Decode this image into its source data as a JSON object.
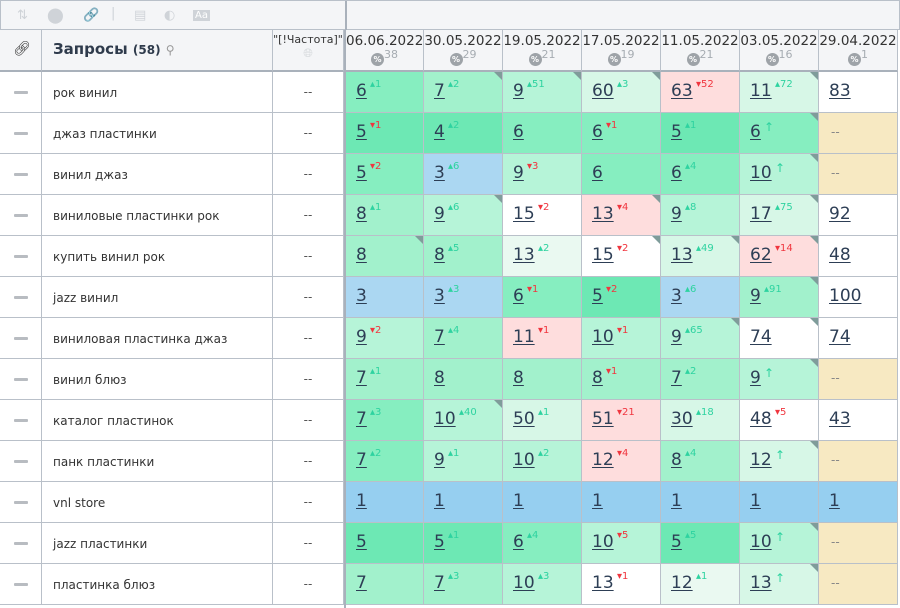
{
  "toolbar": {
    "icons": [
      "sort-icon",
      "toggle-icon",
      "link-icon",
      "layout-icon",
      "contrast-icon",
      "font-icon"
    ]
  },
  "header": {
    "title": "Запросы",
    "count": "(58)",
    "freq": "\"[!Частота]\"",
    "dates": [
      {
        "date": "06.06.2022",
        "pct": "38"
      },
      {
        "date": "30.05.2022",
        "pct": "29"
      },
      {
        "date": "19.05.2022",
        "pct": "21"
      },
      {
        "date": "17.05.2022",
        "pct": "19"
      },
      {
        "date": "11.05.2022",
        "pct": "21"
      },
      {
        "date": "03.05.2022",
        "pct": "16"
      },
      {
        "date": "29.04.2022",
        "pct": "1"
      }
    ]
  },
  "colors": {
    "g1": "#6de8b4",
    "g2": "#86eec0",
    "g3": "#a2f1cc",
    "g4": "#b6f4d8",
    "g5": "#d7f7e7",
    "g6": "#eaf9f1",
    "pink": "#fedddd",
    "blue": "#abd7f2",
    "blue2": "#96cff0",
    "white": "#ffffff",
    "beige": "#f7e9c2"
  },
  "rows": [
    {
      "query": "рок винил",
      "freq": "--",
      "cells": [
        [
          "6",
          "1",
          "u",
          "g2",
          0
        ],
        [
          "7",
          "2",
          "u",
          "g3",
          1
        ],
        [
          "9",
          "51",
          "u",
          "g4",
          1
        ],
        [
          "60",
          "3",
          "u",
          "g5",
          1
        ],
        [
          "63",
          "52",
          "d",
          "pink",
          0
        ],
        [
          "11",
          "72",
          "u",
          "g5",
          1
        ],
        [
          "83",
          "",
          "",
          "white",
          0
        ]
      ]
    },
    {
      "query": "джаз пластинки",
      "freq": "--",
      "cells": [
        [
          "5",
          "1",
          "d",
          "g1",
          0
        ],
        [
          "4",
          "2",
          "u",
          "g1",
          0
        ],
        [
          "6",
          "",
          "",
          "g2",
          0
        ],
        [
          "6",
          "1",
          "d",
          "g2",
          0
        ],
        [
          "5",
          "1",
          "u",
          "g1",
          0
        ],
        [
          "6",
          "↑",
          "n",
          "g2",
          1
        ],
        [
          "--",
          "",
          "",
          "beige",
          0
        ]
      ]
    },
    {
      "query": "винил джаз",
      "freq": "--",
      "cells": [
        [
          "5",
          "2",
          "d",
          "g2",
          0
        ],
        [
          "3",
          "6",
          "u",
          "blue",
          0
        ],
        [
          "9",
          "3",
          "d",
          "g4",
          0
        ],
        [
          "6",
          "",
          "",
          "g2",
          0
        ],
        [
          "6",
          "4",
          "u",
          "g2",
          0
        ],
        [
          "10",
          "↑",
          "n",
          "g4",
          1
        ],
        [
          "--",
          "",
          "",
          "beige",
          0
        ]
      ]
    },
    {
      "query": "виниловые пластинки рок",
      "freq": "--",
      "cells": [
        [
          "8",
          "1",
          "u",
          "g3",
          0
        ],
        [
          "9",
          "6",
          "u",
          "g4",
          1
        ],
        [
          "15",
          "2",
          "d",
          "white",
          0
        ],
        [
          "13",
          "4",
          "d",
          "pink",
          1
        ],
        [
          "9",
          "8",
          "u",
          "g4",
          0
        ],
        [
          "17",
          "75",
          "u",
          "g5",
          1
        ],
        [
          "92",
          "",
          "",
          "white",
          0
        ]
      ]
    },
    {
      "query": "купить винил рок",
      "freq": "--",
      "cells": [
        [
          "8",
          "",
          "",
          "g3",
          1
        ],
        [
          "8",
          "5",
          "u",
          "g3",
          0
        ],
        [
          "13",
          "2",
          "u",
          "g6",
          0
        ],
        [
          "15",
          "2",
          "d",
          "white",
          1
        ],
        [
          "13",
          "49",
          "u",
          "g5",
          1
        ],
        [
          "62",
          "14",
          "d",
          "pink",
          1
        ],
        [
          "48",
          "",
          "",
          "white",
          0
        ]
      ]
    },
    {
      "query": "jazz винил",
      "freq": "--",
      "cells": [
        [
          "3",
          "",
          "",
          "blue",
          0
        ],
        [
          "3",
          "3",
          "u",
          "blue",
          0
        ],
        [
          "6",
          "1",
          "d",
          "g2",
          0
        ],
        [
          "5",
          "2",
          "d",
          "g1",
          0
        ],
        [
          "3",
          "6",
          "u",
          "blue",
          0
        ],
        [
          "9",
          "91",
          "u",
          "g3",
          1
        ],
        [
          "100",
          "",
          "",
          "white",
          0
        ]
      ]
    },
    {
      "query": "виниловая пластинка джаз",
      "freq": "--",
      "cells": [
        [
          "9",
          "2",
          "d",
          "g4",
          0
        ],
        [
          "7",
          "4",
          "u",
          "g3",
          0
        ],
        [
          "11",
          "1",
          "d",
          "pink",
          0
        ],
        [
          "10",
          "1",
          "d",
          "g4",
          0
        ],
        [
          "9",
          "65",
          "u",
          "g4",
          1
        ],
        [
          "74",
          "",
          "",
          "white",
          1
        ],
        [
          "74",
          "",
          "",
          "white",
          0
        ]
      ]
    },
    {
      "query": "винил блюз",
      "freq": "--",
      "cells": [
        [
          "7",
          "1",
          "u",
          "g3",
          0
        ],
        [
          "8",
          "",
          "",
          "g3",
          0
        ],
        [
          "8",
          "",
          "",
          "g3",
          0
        ],
        [
          "8",
          "1",
          "d",
          "g3",
          0
        ],
        [
          "7",
          "2",
          "u",
          "g3",
          0
        ],
        [
          "9",
          "↑",
          "n",
          "g4",
          1
        ],
        [
          "--",
          "",
          "",
          "beige",
          0
        ]
      ]
    },
    {
      "query": "каталог пластинок",
      "freq": "--",
      "cells": [
        [
          "7",
          "3",
          "u",
          "g2",
          0
        ],
        [
          "10",
          "40",
          "u",
          "g4",
          1
        ],
        [
          "50",
          "1",
          "u",
          "g5",
          0
        ],
        [
          "51",
          "21",
          "d",
          "pink",
          0
        ],
        [
          "30",
          "18",
          "u",
          "g5",
          0
        ],
        [
          "48",
          "5",
          "d",
          "white",
          0
        ],
        [
          "43",
          "",
          "",
          "white",
          0
        ]
      ]
    },
    {
      "query": "панк пластинки",
      "freq": "--",
      "cells": [
        [
          "7",
          "2",
          "u",
          "g2",
          0
        ],
        [
          "9",
          "1",
          "u",
          "g4",
          0
        ],
        [
          "10",
          "2",
          "u",
          "g4",
          0
        ],
        [
          "12",
          "4",
          "d",
          "pink",
          0
        ],
        [
          "8",
          "4",
          "u",
          "g3",
          0
        ],
        [
          "12",
          "↑",
          "n",
          "g5",
          1
        ],
        [
          "--",
          "",
          "",
          "beige",
          0
        ]
      ]
    },
    {
      "query": "vnl store",
      "freq": "--",
      "cells": [
        [
          "1",
          "",
          "",
          "blue2",
          0
        ],
        [
          "1",
          "",
          "",
          "blue2",
          0
        ],
        [
          "1",
          "",
          "",
          "blue2",
          0
        ],
        [
          "1",
          "",
          "",
          "blue2",
          0
        ],
        [
          "1",
          "",
          "",
          "blue2",
          0
        ],
        [
          "1",
          "",
          "",
          "blue2",
          0
        ],
        [
          "1",
          "",
          "",
          "blue2",
          0
        ]
      ]
    },
    {
      "query": "jazz пластинки",
      "freq": "--",
      "cells": [
        [
          "5",
          "",
          "",
          "g1",
          0
        ],
        [
          "5",
          "1",
          "u",
          "g1",
          0
        ],
        [
          "6",
          "4",
          "u",
          "g2",
          0
        ],
        [
          "10",
          "5",
          "d",
          "g4",
          0
        ],
        [
          "5",
          "5",
          "u",
          "g1",
          0
        ],
        [
          "10",
          "↑",
          "n",
          "g4",
          1
        ],
        [
          "--",
          "",
          "",
          "beige",
          0
        ]
      ]
    },
    {
      "query": "пластинка блюз",
      "freq": "--",
      "cells": [
        [
          "7",
          "",
          "",
          "g3",
          0
        ],
        [
          "7",
          "3",
          "u",
          "g3",
          0
        ],
        [
          "10",
          "3",
          "u",
          "g4",
          0
        ],
        [
          "13",
          "1",
          "d",
          "white",
          0
        ],
        [
          "12",
          "1",
          "u",
          "g6",
          0
        ],
        [
          "13",
          "↑",
          "n",
          "g5",
          1
        ],
        [
          "--",
          "",
          "",
          "beige",
          0
        ]
      ]
    }
  ]
}
